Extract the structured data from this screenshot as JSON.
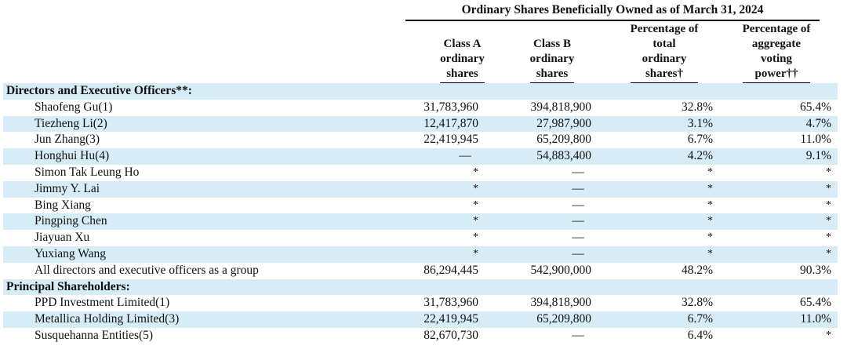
{
  "header": {
    "group_title": "Ordinary Shares Beneficially Owned as of March 31, 2024",
    "columns": [
      "Class A\nordinary\nshares",
      "Class B\nordinary\nshares",
      "Percentage of\ntotal\nordinary\nshares†",
      "Percentage of\naggregate\nvoting\npower††"
    ]
  },
  "sections": [
    {
      "title": "Directors and Executive Officers**:",
      "rows": [
        {
          "name": "Shaofeng Gu(1)",
          "class_a": "31,783,960",
          "class_b": "394,818,900",
          "pct_total": "32.8%",
          "pct_voting": "65.4%"
        },
        {
          "name": "Tiezheng Li(2)",
          "class_a": "12,417,870",
          "class_b": "27,987,900",
          "pct_total": "3.1%",
          "pct_voting": "4.7%"
        },
        {
          "name": "Jun Zhang(3)",
          "class_a": "22,419,945",
          "class_b": "65,209,800",
          "pct_total": "6.7%",
          "pct_voting": "11.0%"
        },
        {
          "name": "Honghui Hu(4)",
          "class_a": "—",
          "class_b": "54,883,400",
          "pct_total": "4.2%",
          "pct_voting": "9.1%"
        },
        {
          "name": "Simon Tak Leung Ho",
          "class_a": "*",
          "class_b": "—",
          "pct_total": "*",
          "pct_voting": "*"
        },
        {
          "name": "Jimmy Y. Lai",
          "class_a": "*",
          "class_b": "—",
          "pct_total": "*",
          "pct_voting": "*"
        },
        {
          "name": "Bing Xiang",
          "class_a": "*",
          "class_b": "—",
          "pct_total": "*",
          "pct_voting": "*"
        },
        {
          "name": "Pingping Chen",
          "class_a": "*",
          "class_b": "—",
          "pct_total": "*",
          "pct_voting": "*"
        },
        {
          "name": "Jiayuan Xu",
          "class_a": "*",
          "class_b": "—",
          "pct_total": "*",
          "pct_voting": "*"
        },
        {
          "name": "Yuxiang Wang",
          "class_a": "*",
          "class_b": "—",
          "pct_total": "*",
          "pct_voting": "*"
        },
        {
          "name": "All directors and executive officers as a group",
          "class_a": "86,294,445",
          "class_b": "542,900,000",
          "pct_total": "48.2%",
          "pct_voting": "90.3%"
        }
      ]
    },
    {
      "title": "Principal Shareholders:",
      "rows": [
        {
          "name": "PPD Investment Limited(1)",
          "class_a": "31,783,960",
          "class_b": "394,818,900",
          "pct_total": "32.8%",
          "pct_voting": "65.4%"
        },
        {
          "name": "Metallica Holding Limited(3)",
          "class_a": "22,419,945",
          "class_b": "65,209,800",
          "pct_total": "6.7%",
          "pct_voting": "11.0%"
        },
        {
          "name": "Susquehanna Entities(5)",
          "class_a": "82,670,730",
          "class_b": "—",
          "pct_total": "6.4%",
          "pct_voting": "*"
        }
      ]
    }
  ],
  "colors": {
    "row_shade": "#d6ecf7",
    "text": "#111111",
    "rule": "#000000"
  }
}
